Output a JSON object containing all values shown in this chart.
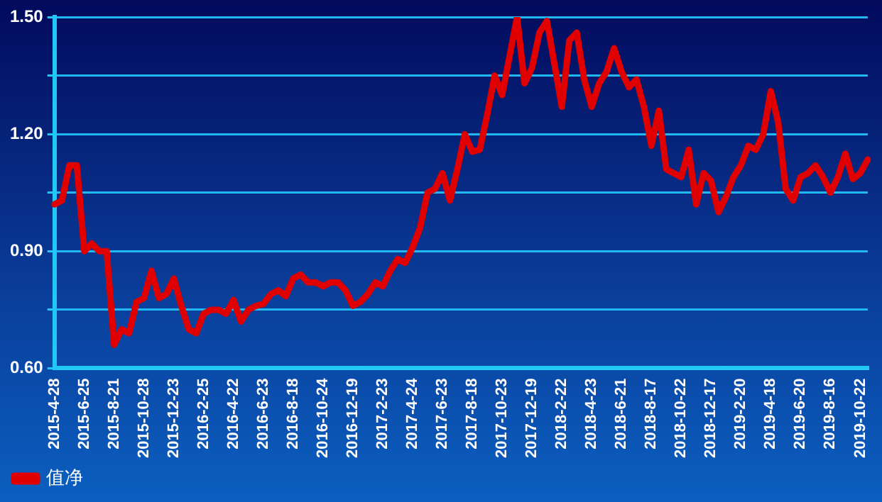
{
  "chart_data": {
    "type": "line",
    "categories": [
      "2015-4-28",
      null,
      null,
      null,
      "2015-6-25",
      null,
      null,
      null,
      "2015-8-21",
      null,
      null,
      null,
      "2015-10-28",
      null,
      null,
      null,
      "2015-12-23",
      null,
      null,
      null,
      "2016-2-25",
      null,
      null,
      null,
      "2016-4-22",
      null,
      null,
      null,
      "2016-6-23",
      null,
      null,
      null,
      "2016-8-18",
      null,
      null,
      null,
      "2016-10-24",
      null,
      null,
      null,
      "2016-12-19",
      null,
      null,
      null,
      "2017-2-23",
      null,
      null,
      null,
      "2017-4-24",
      null,
      null,
      null,
      "2017-6-23",
      null,
      null,
      null,
      "2017-8-18",
      null,
      null,
      null,
      "2017-10-23",
      null,
      null,
      null,
      "2017-12-19",
      null,
      null,
      null,
      "2018-2-22",
      null,
      null,
      null,
      "2018-4-23",
      null,
      null,
      null,
      "2018-6-21",
      null,
      null,
      null,
      "2018-8-17",
      null,
      null,
      null,
      "2018-10-22",
      null,
      null,
      null,
      "2018-12-17",
      null,
      null,
      null,
      "2019-2-20",
      null,
      null,
      null,
      "2019-4-18",
      null,
      null,
      null,
      "2019-6-20",
      null,
      null,
      null,
      "2019-8-16",
      null,
      null,
      null,
      "2019-10-22",
      null
    ],
    "series": [
      {
        "name": "值净",
        "color": "#e00000",
        "values": [
          1.02,
          1.03,
          1.12,
          1.12,
          0.9,
          0.92,
          0.9,
          0.9,
          0.66,
          0.7,
          0.69,
          0.77,
          0.78,
          0.85,
          0.78,
          0.79,
          0.83,
          0.76,
          0.7,
          0.69,
          0.74,
          0.75,
          0.75,
          0.74,
          0.775,
          0.72,
          0.75,
          0.76,
          0.765,
          0.79,
          0.8,
          0.785,
          0.83,
          0.84,
          0.82,
          0.82,
          0.81,
          0.82,
          0.82,
          0.8,
          0.76,
          0.77,
          0.79,
          0.82,
          0.81,
          0.85,
          0.88,
          0.87,
          0.91,
          0.96,
          1.05,
          1.06,
          1.1,
          1.03,
          1.11,
          1.2,
          1.155,
          1.16,
          1.25,
          1.35,
          1.3,
          1.4,
          1.5,
          1.33,
          1.37,
          1.46,
          1.49,
          1.38,
          1.27,
          1.44,
          1.46,
          1.34,
          1.27,
          1.33,
          1.36,
          1.42,
          1.36,
          1.32,
          1.34,
          1.27,
          1.17,
          1.26,
          1.11,
          1.1,
          1.09,
          1.16,
          1.02,
          1.1,
          1.08,
          1.0,
          1.04,
          1.09,
          1.12,
          1.17,
          1.16,
          1.2,
          1.31,
          1.23,
          1.06,
          1.03,
          1.09,
          1.1,
          1.12,
          1.09,
          1.05,
          1.09,
          1.15,
          1.085,
          1.1,
          1.135
        ]
      }
    ],
    "ylim": [
      0.6,
      1.5
    ],
    "yticks": [
      {
        "value": 0.6,
        "label": "0.60"
      },
      {
        "value": 0.75,
        "label": null
      },
      {
        "value": 0.9,
        "label": "0.90"
      },
      {
        "value": 1.05,
        "label": null
      },
      {
        "value": 1.2,
        "label": "1.20"
      },
      {
        "value": 1.35,
        "label": null
      },
      {
        "value": 1.5,
        "label": "1.50"
      }
    ],
    "grid": "y",
    "legend": "bottom",
    "marker": "none",
    "line_style": "solid"
  }
}
